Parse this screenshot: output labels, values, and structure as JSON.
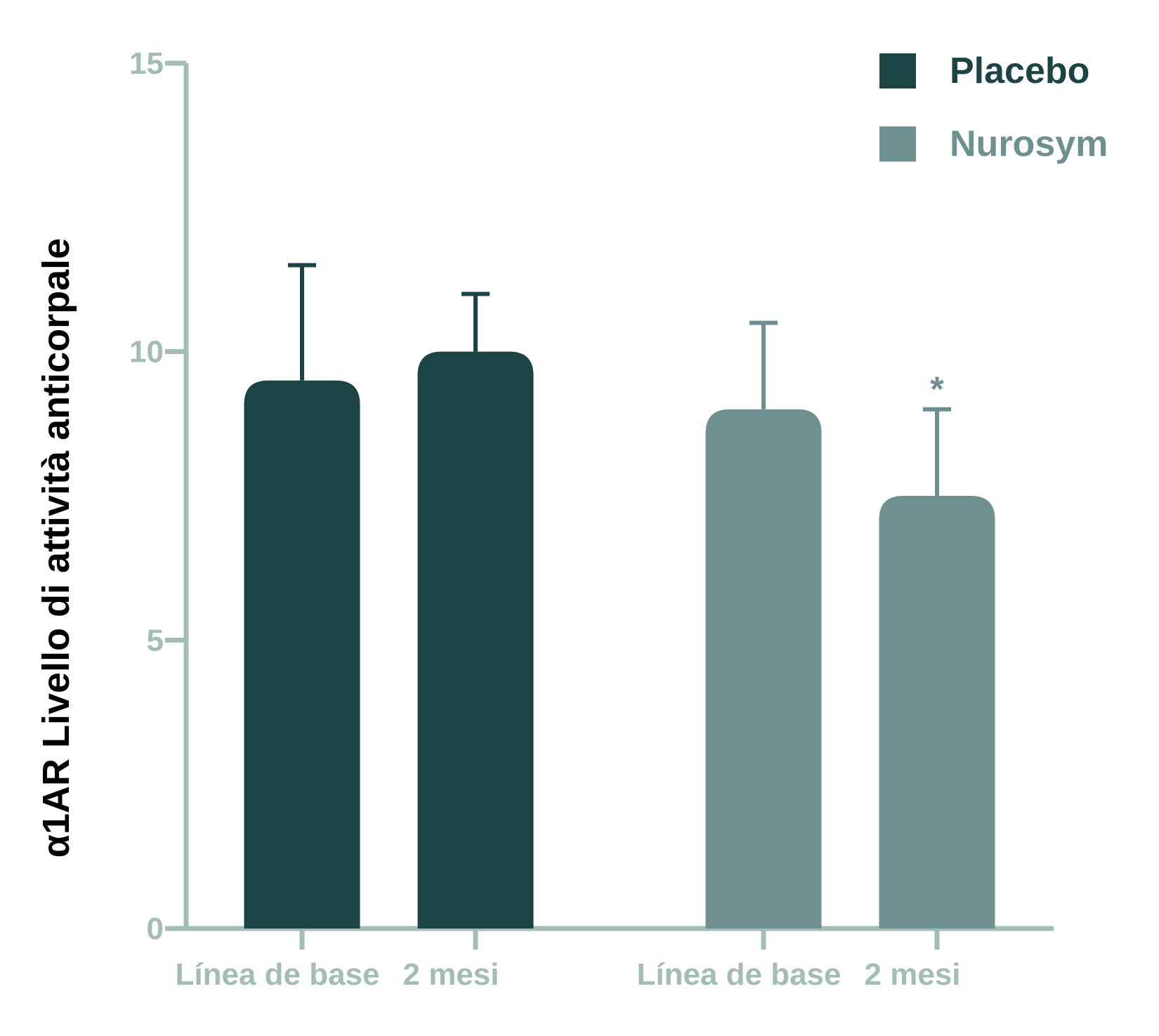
{
  "chart_data": {
    "type": "bar",
    "ylabel": "α1AR Livello di attività anticorpale",
    "xlabel": "",
    "ylim": [
      0,
      15
    ],
    "yticks": [
      0,
      5,
      10,
      15
    ],
    "legend_position": "top-right",
    "grid": false,
    "axis_color": "#a3bcb6",
    "series": [
      {
        "name": "Placebo",
        "color": "#1c4444",
        "categories": [
          "Línea de base",
          "2 mesi"
        ],
        "values": [
          9.5,
          10.0
        ],
        "error_upper": [
          11.5,
          11.0
        ],
        "annotations": [
          "",
          ""
        ]
      },
      {
        "name": "Nurosym",
        "color": "#6f9090",
        "categories": [
          "Línea de base",
          "2 mesi"
        ],
        "values": [
          9.0,
          7.5
        ],
        "error_upper": [
          10.5,
          9.0
        ],
        "annotations": [
          "",
          "*"
        ]
      }
    ]
  }
}
